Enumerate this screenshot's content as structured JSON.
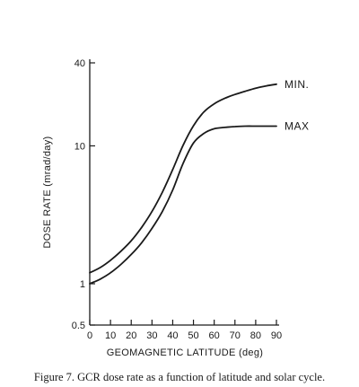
{
  "chart_data": {
    "type": "line",
    "title": "",
    "xlabel": "GEOMAGNETIC LATITUDE (deg)",
    "ylabel": "DOSE RATE (mrad/day)",
    "xlim": [
      0,
      90
    ],
    "ylim": [
      0.5,
      40
    ],
    "y_scale": "log",
    "x_ticks": [
      "0",
      "10",
      "20",
      "30",
      "40",
      "50",
      "60",
      "70",
      "80",
      "90"
    ],
    "y_ticks": [
      "0.5",
      "1",
      "10",
      "40"
    ],
    "grid": false,
    "series": [
      {
        "name": "MIN.",
        "x": [
          0,
          5,
          10,
          15,
          20,
          25,
          30,
          35,
          40,
          45,
          50,
          55,
          60,
          65,
          70,
          75,
          80,
          85,
          90
        ],
        "y": [
          1.2,
          1.31,
          1.48,
          1.72,
          2.05,
          2.56,
          3.34,
          4.61,
          6.73,
          10.1,
          14.0,
          17.6,
          20.2,
          22.1,
          23.6,
          24.9,
          26.2,
          27.2,
          28.0
        ]
      },
      {
        "name": "MAX",
        "x": [
          0,
          5,
          10,
          15,
          20,
          25,
          30,
          35,
          40,
          45,
          50,
          55,
          60,
          65,
          70,
          75,
          80,
          85,
          90
        ],
        "y": [
          1.0,
          1.08,
          1.2,
          1.38,
          1.63,
          1.98,
          2.52,
          3.34,
          4.78,
          7.46,
          10.5,
          12.3,
          13.3,
          13.6,
          13.8,
          13.9,
          13.9,
          13.9,
          13.9
        ]
      }
    ]
  },
  "caption": "Figure 7. GCR dose rate as a function of latitude and solar cycle."
}
